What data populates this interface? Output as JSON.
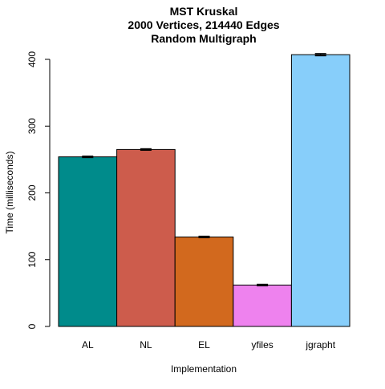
{
  "chart_data": {
    "type": "bar",
    "title_lines": [
      "MST Kruskal",
      "2000 Vertices, 214440 Edges",
      "Random Multigraph"
    ],
    "xlabel": "Implementation",
    "ylabel": "Time (milliseconds)",
    "categories": [
      "AL",
      "NL",
      "EL",
      "yfiles",
      "jgrapht"
    ],
    "values": [
      254,
      265,
      134,
      62,
      407
    ],
    "errors": [
      1,
      1,
      1,
      1,
      1.5
    ],
    "colors": [
      "#008B8B",
      "#CD5C4C",
      "#D2691E",
      "#EE82EE",
      "#87CEFA"
    ],
    "ylim": [
      0,
      400
    ],
    "yticks": [
      0,
      100,
      200,
      300,
      400
    ],
    "grid": false,
    "legend": "none"
  }
}
